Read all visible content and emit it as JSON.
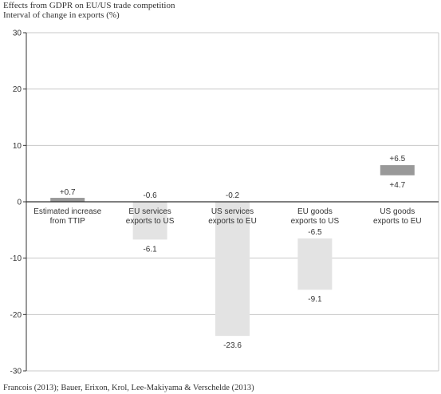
{
  "title_line1": "Effects from GDPR on EU/US trade competition",
  "title_line2": "Interval of change in exports (%)",
  "source": "Francois (2013); Bauer, Erixon, Krol, Lee-Makiyama & Verschelde (2013)",
  "chart_data": {
    "type": "bar",
    "subtype": "floating-range",
    "title": "Effects from GDPR on EU/US trade competition",
    "ylabel": "Interval of change in exports (%)",
    "ylim": [
      -30,
      30
    ],
    "yticks": [
      -30,
      -20,
      -10,
      0,
      10,
      20,
      30
    ],
    "grid": true,
    "categories": [
      {
        "line1": "Estimated increase",
        "line2": "from TTIP"
      },
      {
        "line1": "EU services",
        "line2": "exports to US"
      },
      {
        "line1": "US services",
        "line2": "exports to EU"
      },
      {
        "line1": "EU goods",
        "line2": "exports to US"
      },
      {
        "line1": "US goods",
        "line2": "exports to EU"
      }
    ],
    "ranges": [
      {
        "low": 0,
        "high": 0.7,
        "labels": [
          "+0.7"
        ],
        "color": "#999999"
      },
      {
        "low": -6.7,
        "high": 0,
        "labels": [
          "-0.6",
          "-6.1"
        ],
        "color": "#e3e3e3"
      },
      {
        "low": -23.8,
        "high": 0,
        "labels": [
          "-0.2",
          "-23.6"
        ],
        "color": "#e3e3e3"
      },
      {
        "low": -15.6,
        "high": -6.5,
        "labels": [
          "-6.5",
          "-9.1"
        ],
        "color": "#e3e3e3"
      },
      {
        "low": 4.7,
        "high": 6.5,
        "labels": [
          "+6.5",
          "+4.7"
        ],
        "color": "#999999"
      }
    ],
    "colors": {
      "grid": "#c8c8c8",
      "zero_line": "#333333",
      "axis": "#333333"
    }
  }
}
